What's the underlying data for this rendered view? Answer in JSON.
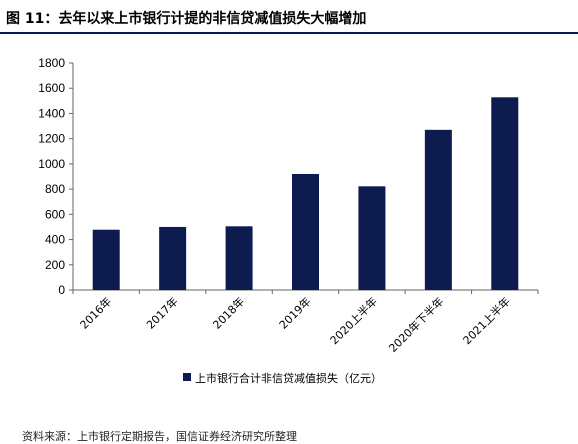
{
  "page": {
    "title": "图 11：去年以来上市银行计提的非信贷减值损失大幅增加",
    "source": "资料来源：上市银行定期报告，国信证券经济研究所整理"
  },
  "chart_data": {
    "type": "bar",
    "categories": [
      "2016年",
      "2017年",
      "2018年",
      "2019年",
      "2020上半年",
      "2020年下半年",
      "2021上半年"
    ],
    "series": [
      {
        "name": "上市银行合计非信贷减值损失（亿元）",
        "values": [
          478,
          500,
          505,
          920,
          822,
          1270,
          1528
        ]
      }
    ],
    "ylim": [
      0,
      1800
    ],
    "yticks": [
      0,
      200,
      400,
      600,
      800,
      1000,
      1200,
      1400,
      1600,
      1800
    ],
    "grid": false,
    "legend_position": "bottom",
    "colors": {
      "bar": "#0d1b4f",
      "axis": "#666666"
    }
  }
}
